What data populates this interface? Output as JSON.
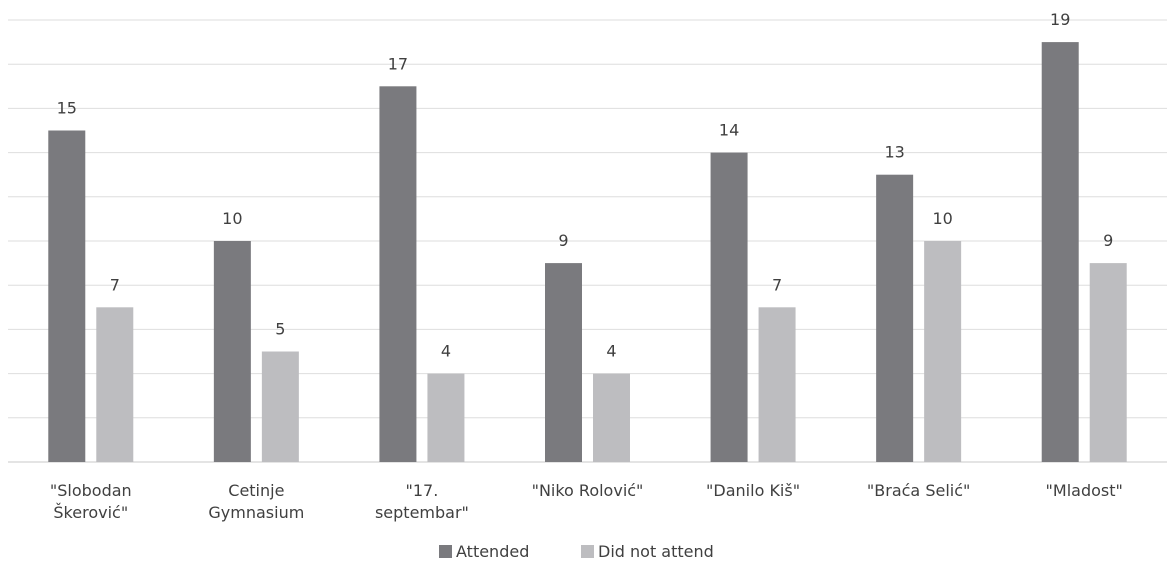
{
  "chart_data": {
    "type": "bar",
    "categories": [
      [
        "\"Slobodan",
        "Škerović\""
      ],
      [
        "Cetinje",
        "Gymnasium"
      ],
      [
        "\"17.",
        "septembar\""
      ],
      [
        "\"Niko Rolović\""
      ],
      [
        "\"Danilo Kiš\""
      ],
      [
        "\"Braća Selić\""
      ],
      [
        "\"Mladost\""
      ]
    ],
    "series": [
      {
        "name": "Attended",
        "values": [
          15,
          10,
          17,
          9,
          14,
          13,
          19
        ],
        "color": "#7a7a7e"
      },
      {
        "name": "Did not attend",
        "values": [
          7,
          5,
          4,
          4,
          7,
          10,
          9
        ],
        "color": "#bdbdc0"
      }
    ],
    "ylim": [
      0,
      20
    ],
    "grid": true,
    "legend_position": "bottom"
  }
}
